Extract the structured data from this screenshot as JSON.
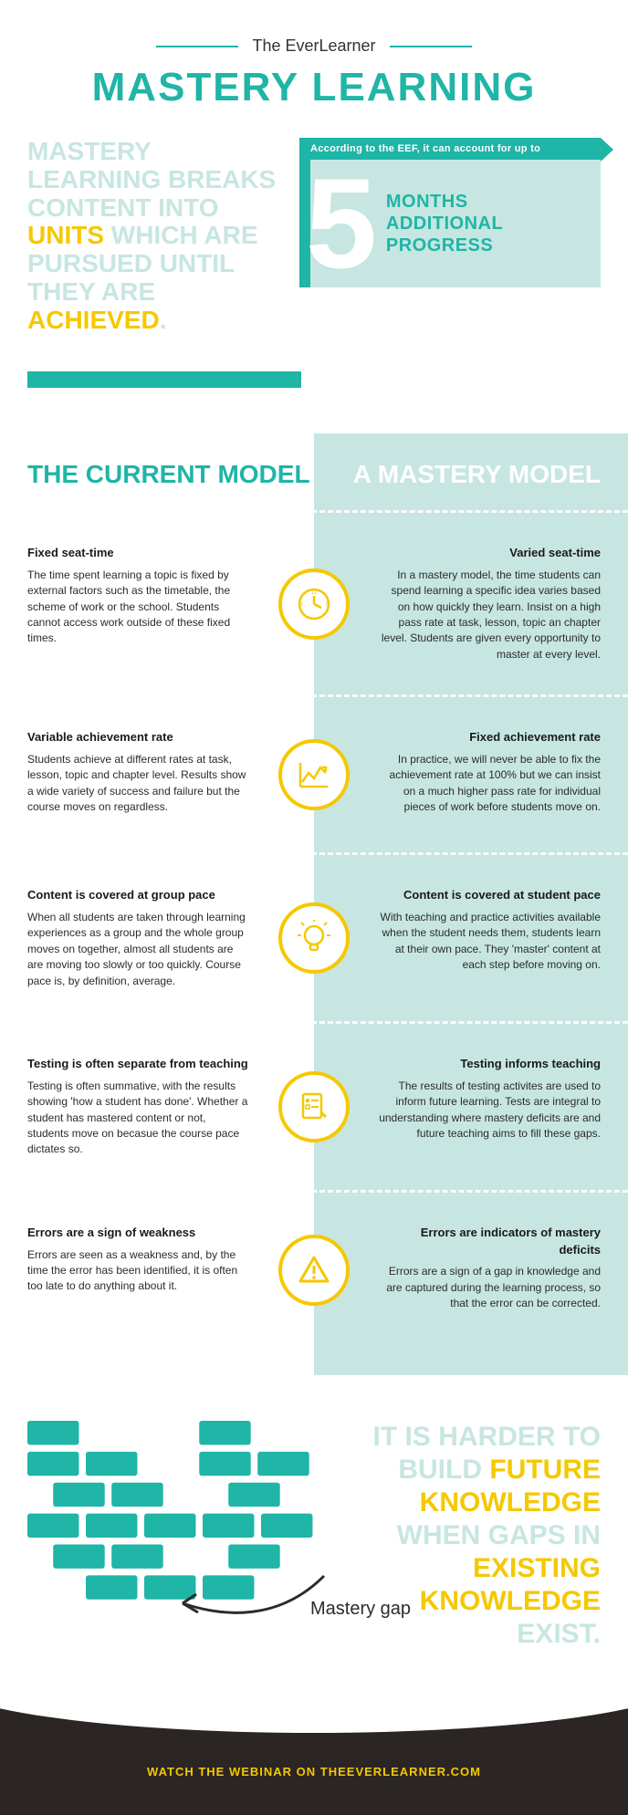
{
  "brand": "The EverLearner",
  "title": "MASTERY LEARNING",
  "hero": {
    "lead_parts": [
      "MASTERY LEARNING BREAKS CONTENT INTO ",
      "UNITS",
      " WHICH ARE PURSUED UNTIL THEY ARE ",
      "ACHIEVED",
      "."
    ],
    "banner": "According to the EEF, it can account for up to",
    "big_number": "5",
    "progress": "MONTHS ADDITIONAL PROGRESS"
  },
  "compare": {
    "left_title": "THE CURRENT MODEL",
    "right_title": "A MASTERY MODEL",
    "rows": [
      {
        "icon": "clock",
        "left_h": "Fixed seat-time",
        "left_b": "The time spent learning a topic is fixed by external factors such as the timetable, the scheme of work or the school. Students cannot access work outside of these fixed times.",
        "right_h": "Varied seat-time",
        "right_b": "In a mastery model, the time students can spend learning a specific idea varies based on how quickly they learn. Insist on a high pass rate at task, lesson, topic an chapter level. Students are given every opportunity to master at every level."
      },
      {
        "icon": "chart",
        "left_h": "Variable achievement rate",
        "left_b": "Students achieve at different rates at task, lesson, topic and chapter level. Results show a wide variety of success and failure but the course moves on regardless.",
        "right_h": "Fixed achievement rate",
        "right_b": "In practice, we will never be able to fix the achievement rate at 100% but we can insist on a much higher pass rate for individual pieces of work before students move on."
      },
      {
        "icon": "bulb",
        "left_h": "Content is covered at group pace",
        "left_b": "When all students are taken through learning experiences as a group and the whole group moves on together, almost all students are are moving too slowly or too quickly. Course pace is, by definition, average.",
        "right_h": "Content is covered at student pace",
        "right_b": "With teaching and practice activities available when the student needs them, students learn at their own pace. They 'master' content at each step before moving on."
      },
      {
        "icon": "checklist",
        "left_h": "Testing is often separate from teaching",
        "left_b": "Testing is often summative, with the results showing 'how a student has done'. Whether a student has mastered content or not, students move on becasue the course pace dictates so.",
        "right_h": "Testing informs teaching",
        "right_b": "The results of testing activites are used to inform future learning. Tests are integral to understanding where mastery deficits are and future teaching aims to fill these gaps."
      },
      {
        "icon": "warning",
        "left_h": "Errors are a sign of weakness",
        "left_b": "Errors are seen as a weakness and, by the time the error has been identified, it is often too late to do anything about it.",
        "right_h": "Errors are indicators of mastery deficits",
        "right_b": "Errors are a sign of a gap in knowledge and are captured during the learning process, so that the error can be corrected."
      }
    ]
  },
  "bricks_text_parts": [
    "IT IS HARDER TO BUILD ",
    "FUTURE KNOWLEDGE",
    " WHEN GAPS IN ",
    "EXISTING KNOWLEDGE",
    " EXIST."
  ],
  "mastery_gap_label": "Mastery gap",
  "footer_text": "WATCH THE WEBINAR ON THEEVERLEARNER.COM",
  "colors": {
    "teal": "#1fb5a7",
    "mint": "#c7e6e1",
    "yellow": "#f5c800",
    "dark": "#2b2523"
  },
  "bricks": {
    "brick_color": "#1fb5a7",
    "w": 60,
    "h": 28,
    "gap": 8,
    "rows": [
      [
        0,
        null,
        null,
        200
      ],
      [
        0,
        68,
        null,
        200,
        268
      ],
      [
        30,
        98,
        null,
        null,
        234
      ],
      [
        0,
        68,
        136,
        204,
        272
      ],
      [
        30,
        98,
        null,
        234
      ],
      [
        68,
        136,
        204
      ]
    ]
  }
}
